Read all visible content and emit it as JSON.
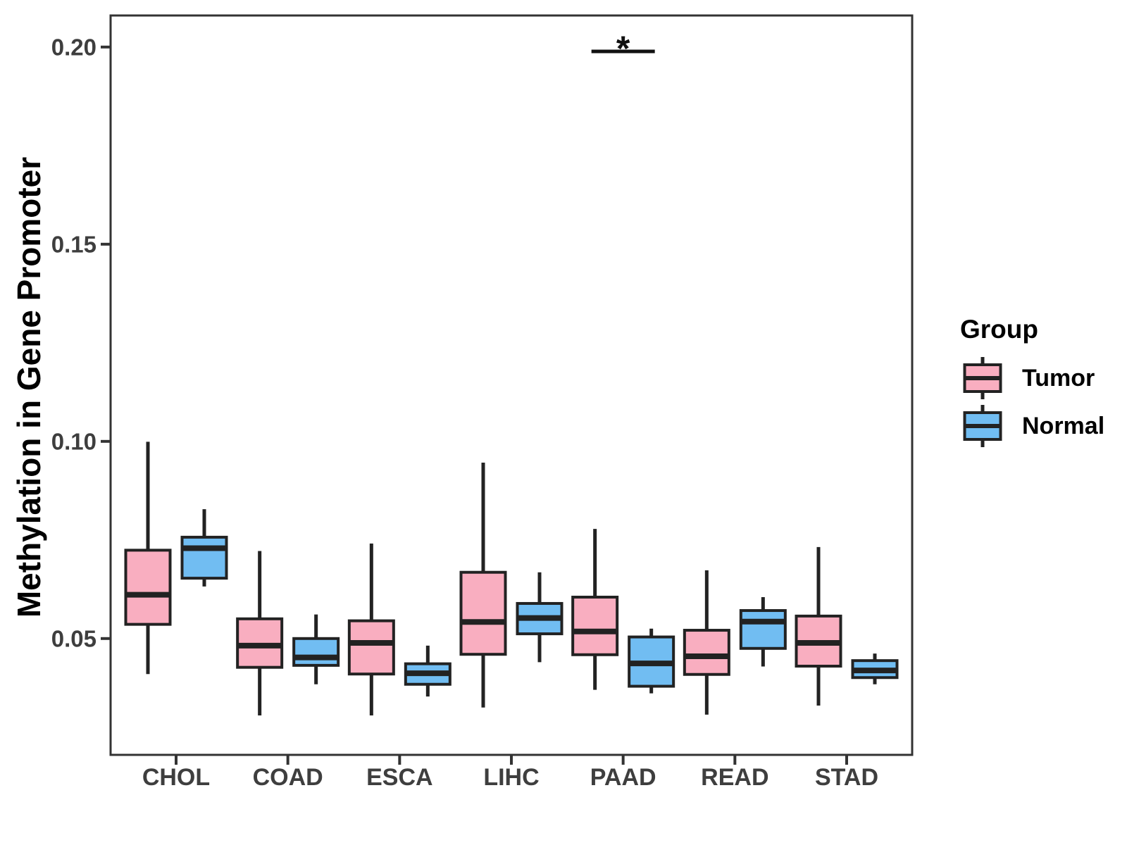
{
  "figure": {
    "background": "#ffffff",
    "panel_border_color": "#333333",
    "tick_text_color": "#3E3E3E",
    "box_stroke_color": "#222222",
    "annotation_color": "#111111"
  },
  "chart_data": {
    "type": "box",
    "orientation": "vertical",
    "title": "",
    "xlabel": "",
    "ylabel": "Methylation in Gene Promoter",
    "categories": [
      "CHOL",
      "COAD",
      "ESCA",
      "LIHC",
      "PAAD",
      "READ",
      "STAD"
    ],
    "ylim": [
      0.0205,
      0.208
    ],
    "yticks": [
      0.05,
      0.1,
      0.15,
      0.2
    ],
    "ytick_labels": [
      "0.05",
      "0.10",
      "0.15",
      "0.20"
    ],
    "grid": false,
    "legend_position": "right",
    "legend": {
      "title": "Group",
      "entries": [
        {
          "label": "Tumor",
          "color": "#F9AEC0"
        },
        {
          "label": "Normal",
          "color": "#71BDF2"
        }
      ]
    },
    "series": [
      {
        "name": "Tumor",
        "fill": "#F9AEC0",
        "boxes": [
          {
            "category": "CHOL",
            "whisker_low": 0.041,
            "q1": 0.0536,
            "median": 0.0611,
            "q3": 0.0724,
            "whisker_high": 0.0999
          },
          {
            "category": "COAD",
            "whisker_low": 0.0305,
            "q1": 0.0427,
            "median": 0.0482,
            "q3": 0.055,
            "whisker_high": 0.0722
          },
          {
            "category": "ESCA",
            "whisker_low": 0.0305,
            "q1": 0.041,
            "median": 0.0489,
            "q3": 0.0545,
            "whisker_high": 0.0741
          },
          {
            "category": "LIHC",
            "whisker_low": 0.0325,
            "q1": 0.046,
            "median": 0.0542,
            "q3": 0.0668,
            "whisker_high": 0.0946
          },
          {
            "category": "PAAD",
            "whisker_low": 0.037,
            "q1": 0.0459,
            "median": 0.0518,
            "q3": 0.0605,
            "whisker_high": 0.0778
          },
          {
            "category": "READ",
            "whisker_low": 0.0307,
            "q1": 0.0409,
            "median": 0.0455,
            "q3": 0.0521,
            "whisker_high": 0.0673
          },
          {
            "category": "STAD",
            "whisker_low": 0.033,
            "q1": 0.043,
            "median": 0.0489,
            "q3": 0.0557,
            "whisker_high": 0.0732
          }
        ]
      },
      {
        "name": "Normal",
        "fill": "#71BDF2",
        "boxes": [
          {
            "category": "CHOL",
            "whisker_low": 0.0632,
            "q1": 0.0653,
            "median": 0.0729,
            "q3": 0.0757,
            "whisker_high": 0.0828
          },
          {
            "category": "COAD",
            "whisker_low": 0.0384,
            "q1": 0.0432,
            "median": 0.0452,
            "q3": 0.05,
            "whisker_high": 0.0561
          },
          {
            "category": "ESCA",
            "whisker_low": 0.0353,
            "q1": 0.0384,
            "median": 0.0412,
            "q3": 0.0436,
            "whisker_high": 0.0482
          },
          {
            "category": "LIHC",
            "whisker_low": 0.044,
            "q1": 0.0512,
            "median": 0.0552,
            "q3": 0.0589,
            "whisker_high": 0.0668
          },
          {
            "category": "PAAD",
            "whisker_low": 0.0361,
            "q1": 0.0379,
            "median": 0.0437,
            "q3": 0.0504,
            "whisker_high": 0.0525
          },
          {
            "category": "READ",
            "whisker_low": 0.0429,
            "q1": 0.0475,
            "median": 0.0543,
            "q3": 0.0571,
            "whisker_high": 0.0605
          },
          {
            "category": "STAD",
            "whisker_low": 0.0384,
            "q1": 0.0401,
            "median": 0.0419,
            "q3": 0.0444,
            "whisker_high": 0.0462
          }
        ]
      }
    ],
    "annotations": [
      {
        "type": "significance",
        "label": "*",
        "category": "PAAD",
        "bar_y_value": 0.1989,
        "spans": [
          "Tumor",
          "Normal"
        ]
      }
    ]
  }
}
